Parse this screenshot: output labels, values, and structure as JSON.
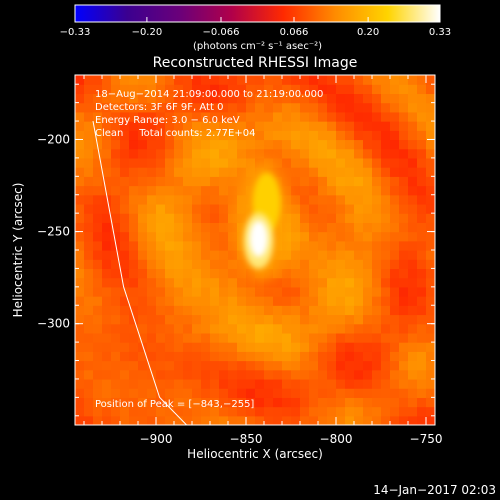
{
  "colorbar": {
    "ticks": [
      {
        "value": -0.33,
        "label": "−0.33"
      },
      {
        "value": -0.2,
        "label": "−0.20"
      },
      {
        "value": -0.066,
        "label": "−0.066"
      },
      {
        "value": 0.066,
        "label": "0.066"
      },
      {
        "value": 0.2,
        "label": "0.20"
      },
      {
        "value": 0.33,
        "label": "0.33"
      }
    ],
    "range": [
      -0.33,
      0.33
    ],
    "unit_label": "(photons cm⁻² s⁻¹ asec⁻²)",
    "colormap": [
      "#0000ff",
      "#3b0090",
      "#6a007a",
      "#b0004a",
      "#ff2a00",
      "#ff8c00",
      "#ffd400",
      "#ffffff"
    ]
  },
  "chart_data": {
    "type": "heatmap",
    "title": "Reconstructed RHESSI Image",
    "xlabel": "Heliocentric X (arcsec)",
    "ylabel": "Heliocentric Y (arcsec)",
    "xlim": [
      -945,
      -745
    ],
    "ylim": [
      -355,
      -165
    ],
    "x_ticks": [
      {
        "value": -900,
        "label": "−900"
      },
      {
        "value": -850,
        "label": "−850"
      },
      {
        "value": -800,
        "label": "−800"
      },
      {
        "value": -750,
        "label": "−750"
      }
    ],
    "y_ticks": [
      {
        "value": -200,
        "label": "−200"
      },
      {
        "value": -250,
        "label": "−250"
      },
      {
        "value": -300,
        "label": "−300"
      }
    ],
    "annotations": [
      "18−Aug−2014 21:09:00.000 to 21:19:00.000",
      "Detectors: 3F 6F 9F, Att 0",
      "Energy Range: 3.0 − 6.0 keV",
      "Clean     Total counts: 2.77E+04"
    ],
    "peak_label": "Position of Peak = [−843,−255]",
    "peak": {
      "x": -843,
      "y": -255,
      "value": 0.33
    },
    "limb": [
      [
        -935,
        -190
      ],
      [
        -918,
        -280
      ],
      [
        -898,
        -340
      ],
      [
        -883,
        -355
      ]
    ],
    "background_level": 0.09,
    "grid": false
  },
  "footer": {
    "timestamp": "14−Jan−2017 02:03"
  }
}
